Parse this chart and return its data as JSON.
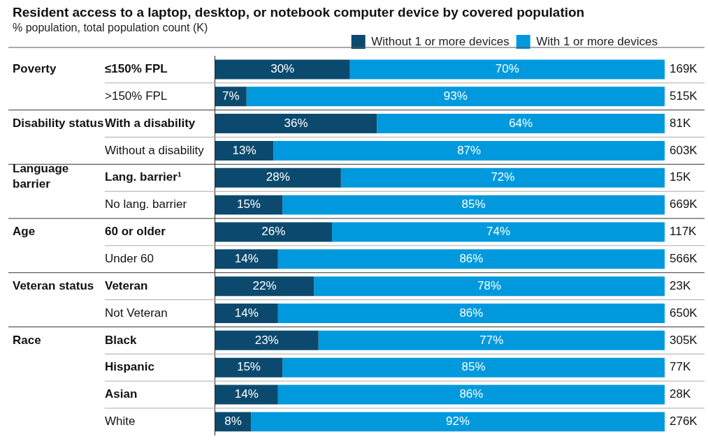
{
  "chart_data": {
    "type": "bar",
    "orientation": "horizontal",
    "stacked": true,
    "title": "Resident access to a laptop, desktop, or notebook computer device by covered population",
    "subtitle": "% population, total population count (K)",
    "categories": [
      "≤150% FPL",
      ">150% FPL",
      "With a disability",
      "Without a disability",
      "Lang. barrier¹",
      "No lang. barrier",
      "60 or older",
      "Under 60",
      "Veteran",
      "Not Veteran",
      "Black",
      "Hispanic",
      "Asian",
      "White"
    ],
    "series": [
      {
        "name": "Without 1 or more devices",
        "color": "#0b4a6e",
        "values": [
          30,
          7,
          36,
          13,
          28,
          15,
          26,
          14,
          22,
          14,
          23,
          15,
          14,
          8
        ],
        "value_labels": [
          "30%",
          "7%",
          "36%",
          "13%",
          "28%",
          "15%",
          "26%",
          "14%",
          "22%",
          "14%",
          "23%",
          "15%",
          "14%",
          "8%"
        ]
      },
      {
        "name": "With 1 or more devices",
        "color": "#0099dd",
        "values": [
          70,
          93,
          64,
          87,
          72,
          85,
          74,
          86,
          78,
          86,
          77,
          85,
          86,
          92
        ],
        "value_labels": [
          "70%",
          "93%",
          "64%",
          "87%",
          "72%",
          "85%",
          "74%",
          "86%",
          "78%",
          "86%",
          "77%",
          "85%",
          "86%",
          "92%"
        ]
      }
    ],
    "xlim": [
      0,
      100
    ],
    "tick_labels": "y",
    "grid": false,
    "legend": "top right",
    "annotations": [
      "Poverty",
      "Disability status",
      "Language barrier",
      "Age",
      "Veteran status",
      "Race",
      "169K",
      "515K",
      "81K",
      "603K",
      "15K",
      "669K",
      "117K",
      "566K",
      "23K",
      "650K",
      "305K",
      "77K",
      "28K",
      "276K"
    ]
  }
}
